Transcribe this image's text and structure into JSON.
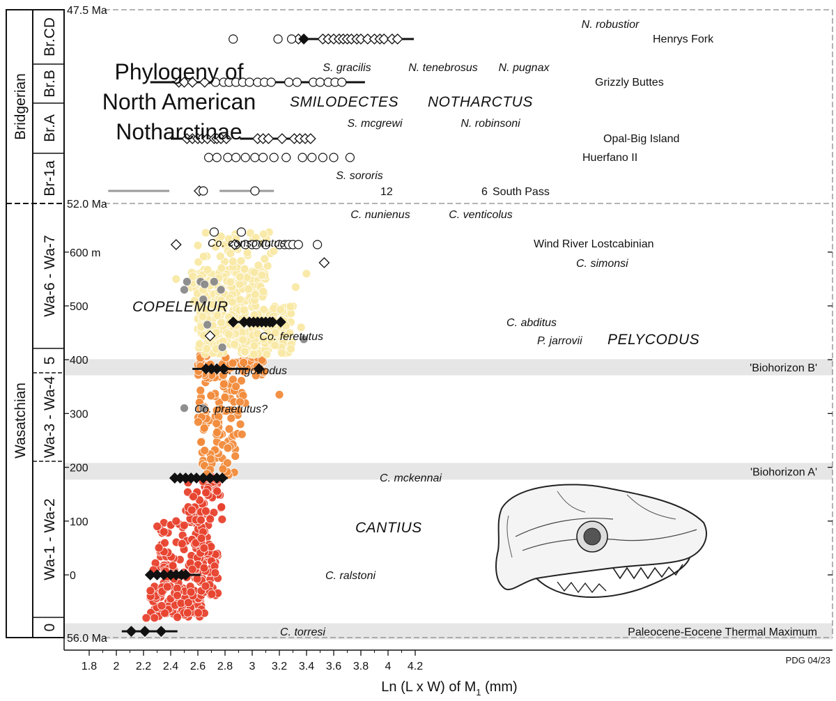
{
  "chart_data": {
    "type": "scatter",
    "title": "Phylogeny of North American Notharctinae",
    "xlabel": "Ln (L x W) of M",
    "xlabel_sub": "1",
    "xlabel_unit": "(mm)",
    "credit": "PDG 04/23",
    "xlim": [
      1.7,
      4.5
    ],
    "x_ticks": [
      1.8,
      2,
      2.2,
      2.4,
      2.6,
      2.8,
      3,
      3.2,
      3.4,
      3.6,
      3.8,
      4,
      4.2
    ],
    "x_tick_labels": [
      "1.8",
      "2",
      "2.2",
      "2.4",
      "2.6",
      "2.8",
      "3",
      "3.2",
      "3.4",
      "3.6",
      "3.8",
      "4",
      "4.2"
    ],
    "wasatchian_y_ticks": [
      {
        "label": "0",
        "m": 0
      },
      {
        "label": "100",
        "m": 100
      },
      {
        "label": "200",
        "m": 200
      },
      {
        "label": "300",
        "m": 300
      },
      {
        "label": "400",
        "m": 400
      },
      {
        "label": "500",
        "m": 500
      },
      {
        "label": "600 m",
        "m": 600
      }
    ],
    "boundaries": [
      {
        "label": "47.5 Ma"
      },
      {
        "label": "52.0 Ma"
      },
      {
        "label": "56.0 Ma"
      }
    ],
    "stages": {
      "bridgerian": "Bridgerian",
      "wasatchian": "Wasatchian",
      "bridgerian_zones": [
        "Br.CD",
        "Br.B",
        "Br.A",
        "Br-1a"
      ],
      "wasatchian_zones": [
        "Wa-6 - Wa-7",
        "5",
        "Wa-3 - Wa-4",
        "Wa-1 - Wa-2",
        "0"
      ]
    },
    "bands": [
      {
        "label": "'Biohorizon B'",
        "m_from": 371,
        "m_to": 401
      },
      {
        "label": "'Biohorizon A'",
        "m_from": 177,
        "m_to": 208
      },
      {
        "label": "Paleocene-Eocene Thermal Maximum",
        "m_from": -120,
        "m_to": -90
      }
    ],
    "genus_labels": [
      "SMILODECTES",
      "NOTHARCTUS",
      "COPELEMUR",
      "PELYCODUS",
      "CANTIUS"
    ],
    "species_labels": [
      "N. robustior",
      "S. gracilis",
      "N. tenebrosus",
      "N. pugnax",
      "S. mcgrewi",
      "N. robinsoni",
      "S. sororis",
      "C. nunienus",
      "C. venticolus",
      "Co. consortutus",
      "C. simonsi",
      "C. abditus",
      "Co. feretutus",
      "P. jarrovii",
      "C. trigonodus",
      "Co. praetutus?",
      "C. mckennai",
      "C. ralstoni",
      "C. torresi"
    ],
    "site_labels": [
      "Henrys Fork",
      "Grizzly Buttes",
      "Opal-Big Island",
      "Huerfano II",
      "South Pass",
      "Wind River Lostcabinian"
    ],
    "south_pass_counts": [
      "12",
      "6"
    ],
    "series": [
      {
        "color": "#e8432f",
        "symbol": "circle",
        "clusters": [
          {
            "m_from": -80,
            "m_to": -40,
            "x_from": 2.25,
            "x_to": 2.65,
            "n": 70,
            "outline": []
          },
          {
            "m_from": -40,
            "m_to": 40,
            "x_from": 2.25,
            "x_to": 2.75,
            "n": 110
          },
          {
            "m_from": 40,
            "m_to": 100,
            "x_from": 2.3,
            "x_to": 2.7,
            "n": 55
          },
          {
            "m_from": 100,
            "m_to": 185,
            "x_from": 2.5,
            "x_to": 2.78,
            "n": 60
          }
        ],
        "extra_points": [
          {
            "x": 2.22,
            "m": -80
          },
          {
            "x": 2.44,
            "m": 100
          },
          {
            "x": 2.35,
            "m": 80
          }
        ]
      },
      {
        "color": "#f28c3c",
        "symbol": "circle",
        "clusters": [
          {
            "m_from": 185,
            "m_to": 260,
            "x_from": 2.62,
            "x_to": 2.88,
            "n": 35
          },
          {
            "m_from": 260,
            "m_to": 370,
            "x_from": 2.6,
            "x_to": 2.95,
            "n": 70
          },
          {
            "m_from": 370,
            "m_to": 410,
            "x_from": 2.6,
            "x_to": 3.1,
            "n": 60
          }
        ],
        "extra_points": [
          {
            "x": 3.2,
            "m": 335
          }
        ]
      },
      {
        "color": "#f9e9a6",
        "symbol": "circle",
        "clusters": [
          {
            "m_from": 410,
            "m_to": 500,
            "x_from": 2.6,
            "x_to": 3.3,
            "n": 260
          },
          {
            "m_from": 500,
            "m_to": 570,
            "x_from": 2.55,
            "x_to": 3.1,
            "n": 160
          },
          {
            "m_from": 570,
            "m_to": 640,
            "x_from": 2.6,
            "x_to": 3.2,
            "n": 40
          }
        ],
        "extra_points": [
          {
            "x": 2.44,
            "m": 550
          },
          {
            "x": 3.4,
            "m": 560
          },
          {
            "x": 3.32,
            "m": 535
          },
          {
            "x": 3.36,
            "m": 460
          }
        ]
      },
      {
        "color": "#8a8a8a",
        "symbol": "circle",
        "points": [
          {
            "x": 2.52,
            "m": 545
          },
          {
            "x": 2.5,
            "m": 530
          },
          {
            "x": 2.62,
            "m": 545
          },
          {
            "x": 2.65,
            "m": 540
          },
          {
            "x": 2.64,
            "m": 512
          },
          {
            "x": 2.72,
            "m": 545
          },
          {
            "x": 2.77,
            "m": 530
          },
          {
            "x": 2.67,
            "m": 465
          },
          {
            "x": 2.78,
            "m": 423
          },
          {
            "x": 3.38,
            "m": 438
          },
          {
            "x": 2.5,
            "m": 310
          },
          {
            "x": 2.64,
            "m": 310
          }
        ]
      }
    ],
    "mean_bars": [
      {
        "name": "C. torresi",
        "m": -105,
        "x_from": 2.04,
        "x_to": 2.45,
        "means": [
          2.11,
          2.21,
          2.33
        ]
      },
      {
        "name": "C. ralstoni",
        "m": 0,
        "x_from": 2.22,
        "x_to": 2.62,
        "means": [
          2.25,
          2.3,
          2.35,
          2.4,
          2.44,
          2.48,
          2.51
        ]
      },
      {
        "name": "C. mckennai",
        "m": 180,
        "x_from": 2.42,
        "x_to": 2.82,
        "means": [
          2.43,
          2.47,
          2.51,
          2.55,
          2.59,
          2.64,
          2.69,
          2.74,
          2.78
        ]
      },
      {
        "name": "C. trigonodus",
        "m": 383,
        "x_from": 2.56,
        "x_to": 2.97,
        "means": [
          2.66,
          2.7,
          2.74,
          2.79,
          3.05
        ]
      },
      {
        "name": "C. abditus",
        "m": 470,
        "x_from": 2.84,
        "x_to": 3.24,
        "means": [
          2.86,
          2.94,
          2.98,
          3.01,
          3.04,
          3.07,
          3.1,
          3.13,
          3.15,
          3.21
        ]
      }
    ],
    "bridger_rows": [
      {
        "site": "Henrys Fork",
        "open_circles": [
          2.86,
          3.19,
          3.29
        ],
        "bar": [
          3.37,
          4.19
        ],
        "filled_diamonds": [
          3.38
        ],
        "open_diamonds": [
          3.34,
          3.52,
          3.56,
          3.6,
          3.64,
          3.67,
          3.7,
          3.73,
          3.77,
          3.8,
          3.85,
          3.9,
          3.94,
          3.97,
          4.03,
          4.07
        ]
      },
      {
        "site": "Grizzly Buttes",
        "bars": [
          [
            2.25,
            2.58
          ],
          [
            2.58,
            3.08
          ],
          [
            3.08,
            3.83
          ]
        ],
        "open_diamonds": [
          2.46,
          2.5,
          2.56,
          2.65
        ],
        "open_circles": [
          2.73,
          2.79,
          2.83,
          2.88,
          2.93,
          2.98,
          3.04,
          3.09,
          3.14,
          3.27,
          3.33,
          3.45,
          3.5,
          3.56,
          3.61,
          3.66
        ]
      },
      {
        "site": "Opal-Big Island",
        "bars": [
          [
            2.4,
            2.68
          ],
          [
            2.91,
            3.46
          ]
        ],
        "open_diamonds": [
          2.52,
          2.56,
          2.6,
          2.63,
          2.67,
          2.72,
          2.74,
          2.77,
          2.81,
          3.04,
          3.08,
          3.12,
          3.22,
          3.31,
          3.35,
          3.39,
          3.43
        ]
      },
      {
        "site": "Huerfano II",
        "open_circles": [
          2.68,
          2.74,
          2.82,
          2.88,
          2.95,
          3.02,
          3.08,
          3.16,
          3.25,
          3.37,
          3.44,
          3.52,
          3.6,
          3.72
        ]
      },
      {
        "site": "South Pass",
        "grey_bars": [
          [
            1.94,
            2.39
          ],
          [
            2.76,
            3.16
          ]
        ],
        "open_circles": [
          2.64,
          3.02
        ],
        "open_diamonds": [
          2.61
        ]
      }
    ],
    "lostcabinian": {
      "open_circles": [
        2.88,
        2.95,
        3.0,
        3.03,
        3.1,
        3.2,
        3.24,
        3.27,
        3.3,
        3.34,
        3.48
      ],
      "open_diamonds": [
        2.44,
        2.87,
        3.53
      ]
    }
  }
}
